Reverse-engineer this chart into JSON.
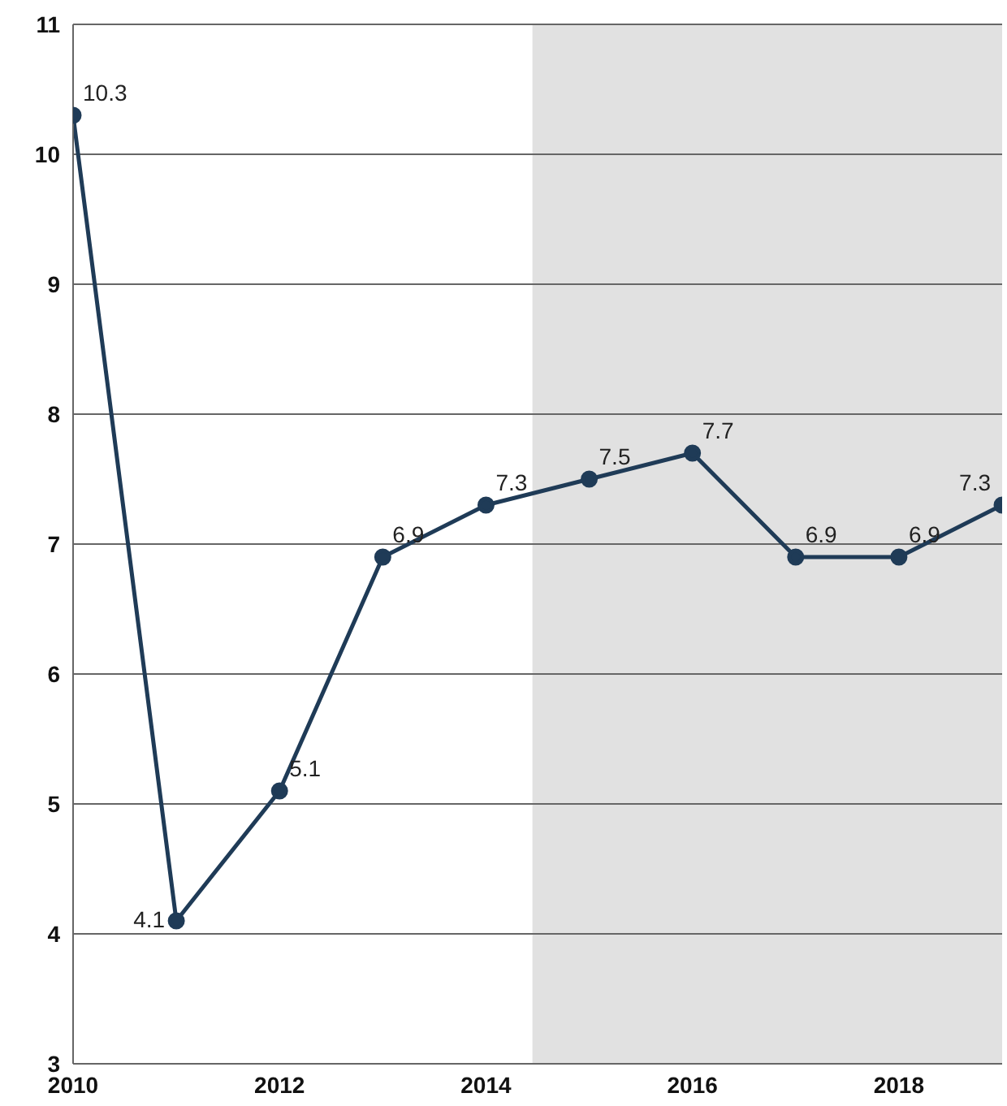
{
  "chart_data": {
    "type": "line",
    "x": [
      2010,
      2011,
      2012,
      2013,
      2014,
      2015,
      2016,
      2017,
      2018,
      2019
    ],
    "series": [
      {
        "color": "#1f3b57",
        "values": [
          10.3,
          4.1,
          5.1,
          6.9,
          7.3,
          7.5,
          7.7,
          6.9,
          6.9,
          7.3
        ]
      }
    ],
    "xlim": [
      2010,
      2019
    ],
    "xticks": [
      2010,
      2012,
      2014,
      2016,
      2018
    ],
    "ylim": [
      3,
      11
    ],
    "yticks": [
      3,
      4,
      5,
      6,
      7,
      8,
      9,
      10,
      11
    ],
    "grid": "y",
    "marker": "circle",
    "data_labels": true,
    "bands": [
      {
        "axis": "x",
        "from": 2014.45,
        "to": 2019,
        "color": "#e1e1e1"
      }
    ]
  }
}
